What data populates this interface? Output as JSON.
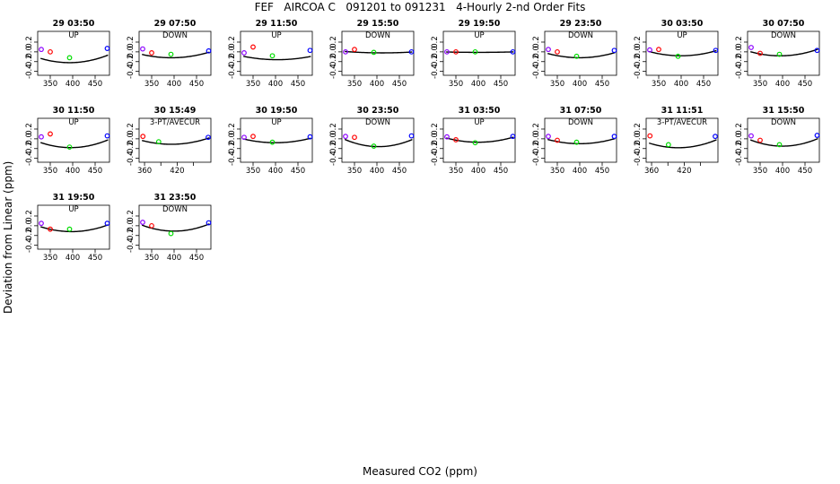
{
  "title": "FEF   AIRCOA C   091201 to 091231   4-Hourly 2-nd Order Fits",
  "ylabel": "Deviation from Linear (ppm)",
  "xlabel": "Measured CO2 (ppm)",
  "colors": {
    "curve": "#000000",
    "std1": "#8b00ff",
    "std2": "#ff0000",
    "std3": "#00dd00",
    "std4": "#0000ff"
  },
  "chart_data": [
    {
      "type": "scatter",
      "title": "29 03:50",
      "subtitle": "UP",
      "xlim": [
        322,
        482
      ],
      "ylim": [
        -0.48,
        0.42
      ],
      "yticks": [
        "-0.4",
        "-0.2",
        "0.0",
        "0.2"
      ],
      "ytick_values": [
        -0.4,
        -0.2,
        0.0,
        0.2
      ],
      "xticks": [
        "350",
        "400",
        "450"
      ],
      "xtick_values": [
        350,
        400,
        450
      ],
      "coef": [
        2.1e-05,
        -0.0165,
        3.02
      ],
      "points": [
        [
          330,
          0.05
        ],
        [
          350,
          0.0
        ],
        [
          393,
          -0.12
        ],
        [
          477,
          0.07
        ]
      ]
    },
    {
      "type": "scatter",
      "title": "29 07:50",
      "subtitle": "DOWN",
      "xlim": [
        322,
        482
      ],
      "ylim": [
        -0.48,
        0.42
      ],
      "yticks": [
        "-0.4",
        "-0.2",
        "0.0",
        "0.2"
      ],
      "ytick_values": [
        -0.4,
        -0.2,
        0.0,
        0.2
      ],
      "xticks": [
        "350",
        "400",
        "450"
      ],
      "xtick_values": [
        350,
        400,
        450
      ],
      "coef": [
        1.6e-05,
        -0.0126,
        2.36
      ],
      "points": [
        [
          330,
          0.06
        ],
        [
          350,
          -0.02
        ],
        [
          393,
          -0.05
        ],
        [
          477,
          0.02
        ]
      ]
    },
    {
      "type": "scatter",
      "title": "29 11:50",
      "subtitle": "UP",
      "xlim": [
        322,
        482
      ],
      "ylim": [
        -0.48,
        0.42
      ],
      "yticks": [
        "-0.4",
        "-0.2",
        "0.0",
        "0.2"
      ],
      "ytick_values": [
        -0.4,
        -0.2,
        0.0,
        0.2
      ],
      "xticks": [
        "350",
        "400",
        "450"
      ],
      "xtick_values": [
        350,
        400,
        450
      ],
      "coef": [
        1.2e-05,
        -0.0097,
        1.8
      ],
      "points": [
        [
          330,
          -0.02
        ],
        [
          350,
          0.1
        ],
        [
          393,
          -0.08
        ],
        [
          477,
          0.03
        ]
      ]
    },
    {
      "type": "scatter",
      "title": "29 15:50",
      "subtitle": "DOWN",
      "xlim": [
        322,
        482
      ],
      "ylim": [
        -0.48,
        0.42
      ],
      "yticks": [
        "-0.4",
        "-0.2",
        "0.0",
        "0.2"
      ],
      "ytick_values": [
        -0.4,
        -0.2,
        0.0,
        0.2
      ],
      "xticks": [
        "350",
        "400",
        "450"
      ],
      "xtick_values": [
        350,
        400,
        450
      ],
      "coef": [
        4e-06,
        -0.0033,
        0.66
      ],
      "points": [
        [
          330,
          0.0
        ],
        [
          350,
          0.05
        ],
        [
          393,
          -0.01
        ],
        [
          477,
          0.0
        ]
      ]
    },
    {
      "type": "scatter",
      "title": "29 19:50",
      "subtitle": "UP",
      "xlim": [
        322,
        482
      ],
      "ylim": [
        -0.48,
        0.42
      ],
      "yticks": [
        "-0.4",
        "-0.2",
        "0.0",
        "0.2"
      ],
      "ytick_values": [
        -0.4,
        -0.2,
        0.0,
        0.2
      ],
      "xticks": [
        "350",
        "400",
        "450"
      ],
      "xtick_values": [
        350,
        400,
        450
      ],
      "coef": [
        1.5e-06,
        -0.0012,
        0.23
      ],
      "points": [
        [
          330,
          0.0
        ],
        [
          350,
          0.0
        ],
        [
          393,
          0.0
        ],
        [
          477,
          0.0
        ]
      ]
    },
    {
      "type": "scatter",
      "title": "29 23:50",
      "subtitle": "DOWN",
      "xlim": [
        322,
        482
      ],
      "ylim": [
        -0.48,
        0.42
      ],
      "yticks": [
        "-0.4",
        "-0.2",
        "0.0",
        "0.2"
      ],
      "ytick_values": [
        -0.4,
        -0.2,
        0.0,
        0.2
      ],
      "xticks": [
        "350",
        "400",
        "450"
      ],
      "xtick_values": [
        350,
        400,
        450
      ],
      "coef": [
        1.7e-05,
        -0.0136,
        2.6
      ],
      "points": [
        [
          330,
          0.05
        ],
        [
          350,
          0.0
        ],
        [
          393,
          -0.09
        ],
        [
          477,
          0.03
        ]
      ]
    },
    {
      "type": "scatter",
      "title": "30 03:50",
      "subtitle": "UP",
      "xlim": [
        322,
        482
      ],
      "ylim": [
        -0.48,
        0.42
      ],
      "yticks": [
        "-0.4",
        "-0.2",
        "0.0",
        "0.2"
      ],
      "ytick_values": [
        -0.4,
        -0.2,
        0.0,
        0.2
      ],
      "xticks": [
        "350",
        "400",
        "450"
      ],
      "xtick_values": [
        350,
        400,
        450
      ],
      "coef": [
        1.7e-05,
        -0.0136,
        2.64
      ],
      "points": [
        [
          330,
          0.04
        ],
        [
          350,
          0.05
        ],
        [
          393,
          -0.09
        ],
        [
          477,
          0.03
        ]
      ]
    },
    {
      "type": "scatter",
      "title": "30 07:50",
      "subtitle": "DOWN",
      "xlim": [
        322,
        482
      ],
      "ylim": [
        -0.48,
        0.42
      ],
      "yticks": [
        "-0.4",
        "-0.2",
        "0.0",
        "0.2"
      ],
      "ytick_values": [
        -0.4,
        -0.2,
        0.0,
        0.2
      ],
      "xticks": [
        "350",
        "400",
        "450"
      ],
      "xtick_values": [
        350,
        400,
        450
      ],
      "coef": [
        1.9e-05,
        -0.015,
        2.88
      ],
      "points": [
        [
          330,
          0.09
        ],
        [
          350,
          -0.03
        ],
        [
          393,
          -0.05
        ],
        [
          477,
          0.03
        ]
      ]
    },
    {
      "type": "scatter",
      "title": "30 11:50",
      "subtitle": "UP",
      "xlim": [
        322,
        482
      ],
      "ylim": [
        -0.48,
        0.42
      ],
      "yticks": [
        "-0.4",
        "-0.2",
        "0.0",
        "0.2"
      ],
      "ytick_values": [
        -0.4,
        -0.2,
        0.0,
        0.2
      ],
      "xticks": [
        "350",
        "400",
        "450"
      ],
      "xtick_values": [
        350,
        400,
        450
      ],
      "coef": [
        2.3e-05,
        -0.0182,
        3.42
      ],
      "points": [
        [
          330,
          0.04
        ],
        [
          350,
          0.1
        ],
        [
          393,
          -0.17
        ],
        [
          477,
          0.06
        ]
      ]
    },
    {
      "type": "scatter",
      "title": "30 15:49",
      "subtitle": "3-PT/AVECUR",
      "xlim": [
        350,
        482
      ],
      "ylim": [
        -0.48,
        0.42
      ],
      "yticks": [
        "-0.4",
        "-0.2",
        "0.0",
        "0.2"
      ],
      "ytick_values": [
        -0.4,
        -0.2,
        0.0,
        0.2
      ],
      "xticks": [
        "360",
        "420"
      ],
      "xtick_values": [
        360,
        420
      ],
      "coef": [
        2.7e-05,
        -0.0221,
        4.41
      ],
      "points": [
        [
          357,
          0.05
        ],
        [
          386,
          -0.06
        ],
        [
          477,
          0.03
        ]
      ]
    },
    {
      "type": "scatter",
      "title": "30 19:50",
      "subtitle": "UP",
      "xlim": [
        322,
        482
      ],
      "ylim": [
        -0.48,
        0.42
      ],
      "yticks": [
        "-0.4",
        "-0.2",
        "0.0",
        "0.2"
      ],
      "ytick_values": [
        -0.4,
        -0.2,
        0.0,
        0.2
      ],
      "xticks": [
        "350",
        "400",
        "450"
      ],
      "xtick_values": [
        350,
        400,
        450
      ],
      "coef": [
        1.5e-05,
        -0.012,
        2.32
      ],
      "points": [
        [
          330,
          0.03
        ],
        [
          350,
          0.05
        ],
        [
          393,
          -0.07
        ],
        [
          477,
          0.04
        ]
      ]
    },
    {
      "type": "scatter",
      "title": "30 23:50",
      "subtitle": "DOWN",
      "xlim": [
        322,
        482
      ],
      "ylim": [
        -0.48,
        0.42
      ],
      "yticks": [
        "-0.4",
        "-0.2",
        "0.0",
        "0.2"
      ],
      "ytick_values": [
        -0.4,
        -0.2,
        0.0,
        0.2
      ],
      "xticks": [
        "350",
        "400",
        "450"
      ],
      "xtick_values": [
        350,
        400,
        450
      ],
      "coef": [
        2.6e-05,
        -0.021,
        4.08
      ],
      "points": [
        [
          330,
          0.05
        ],
        [
          350,
          0.03
        ],
        [
          393,
          -0.15
        ],
        [
          477,
          0.06
        ]
      ]
    },
    {
      "type": "scatter",
      "title": "31 03:50",
      "subtitle": "UP",
      "xlim": [
        322,
        482
      ],
      "ylim": [
        -0.48,
        0.42
      ],
      "yticks": [
        "-0.4",
        "-0.2",
        "0.0",
        "0.2"
      ],
      "ytick_values": [
        -0.4,
        -0.2,
        0.0,
        0.2
      ],
      "xticks": [
        "350",
        "400",
        "450"
      ],
      "xtick_values": [
        350,
        400,
        450
      ],
      "coef": [
        1.7e-05,
        -0.0136,
        2.65
      ],
      "points": [
        [
          330,
          0.04
        ],
        [
          350,
          -0.02
        ],
        [
          393,
          -0.08
        ],
        [
          477,
          0.05
        ]
      ]
    },
    {
      "type": "scatter",
      "title": "31 07:50",
      "subtitle": "DOWN",
      "xlim": [
        322,
        482
      ],
      "ylim": [
        -0.48,
        0.42
      ],
      "yticks": [
        "-0.4",
        "-0.2",
        "0.0",
        "0.2"
      ],
      "ytick_values": [
        -0.4,
        -0.2,
        0.0,
        0.2
      ],
      "xticks": [
        "350",
        "400",
        "450"
      ],
      "xtick_values": [
        350,
        400,
        450
      ],
      "coef": [
        1.7e-05,
        -0.0136,
        2.62
      ],
      "points": [
        [
          330,
          0.05
        ],
        [
          350,
          -0.03
        ],
        [
          393,
          -0.07
        ],
        [
          477,
          0.05
        ]
      ]
    },
    {
      "type": "scatter",
      "title": "31 11:51",
      "subtitle": "3-PT/AVECUR",
      "xlim": [
        350,
        482
      ],
      "ylim": [
        -0.48,
        0.42
      ],
      "yticks": [
        "-0.4",
        "-0.2",
        "0.0",
        "0.2"
      ],
      "ytick_values": [
        -0.4,
        -0.2,
        0.0,
        0.2
      ],
      "xticks": [
        "360",
        "420"
      ],
      "xtick_values": [
        360,
        420
      ],
      "coef": [
        3.3e-05,
        -0.027,
        5.34
      ],
      "points": [
        [
          357,
          0.06
        ],
        [
          391,
          -0.12
        ],
        [
          477,
          0.05
        ]
      ]
    },
    {
      "type": "scatter",
      "title": "31 15:50",
      "subtitle": "DOWN",
      "xlim": [
        322,
        482
      ],
      "ylim": [
        -0.48,
        0.42
      ],
      "yticks": [
        "-0.4",
        "-0.2",
        "0.0",
        "0.2"
      ],
      "ytick_values": [
        -0.4,
        -0.2,
        0.0,
        0.2
      ],
      "xticks": [
        "350",
        "400",
        "450"
      ],
      "xtick_values": [
        350,
        400,
        450
      ],
      "coef": [
        2.5e-05,
        -0.02,
        3.85
      ],
      "points": [
        [
          330,
          0.06
        ],
        [
          350,
          -0.03
        ],
        [
          393,
          -0.12
        ],
        [
          477,
          0.07
        ]
      ]
    },
    {
      "type": "scatter",
      "title": "31 19:50",
      "subtitle": "UP",
      "xlim": [
        322,
        482
      ],
      "ylim": [
        -0.48,
        0.42
      ],
      "yticks": [
        "-0.4",
        "-0.2",
        "0.0",
        "0.2"
      ],
      "ytick_values": [
        -0.4,
        -0.2,
        0.0,
        0.2
      ],
      "xticks": [
        "350",
        "400",
        "450"
      ],
      "xtick_values": [
        350,
        400,
        450
      ],
      "coef": [
        2.1e-05,
        -0.0167,
        3.2
      ],
      "points": [
        [
          330,
          0.05
        ],
        [
          350,
          -0.07
        ],
        [
          393,
          -0.07
        ],
        [
          477,
          0.05
        ]
      ]
    },
    {
      "type": "scatter",
      "title": "31 23:50",
      "subtitle": "DOWN",
      "xlim": [
        322,
        482
      ],
      "ylim": [
        -0.48,
        0.42
      ],
      "yticks": [
        "-0.4",
        "-0.2",
        "0.0",
        "0.2"
      ],
      "ytick_values": [
        -0.4,
        -0.2,
        0.0,
        0.2
      ],
      "xticks": [
        "350",
        "400",
        "450"
      ],
      "xtick_values": [
        350,
        400,
        450
      ],
      "coef": [
        2.4e-05,
        -0.0192,
        3.73
      ],
      "points": [
        [
          330,
          0.07
        ],
        [
          350,
          0.0
        ],
        [
          393,
          -0.16
        ],
        [
          477,
          0.06
        ]
      ]
    }
  ]
}
